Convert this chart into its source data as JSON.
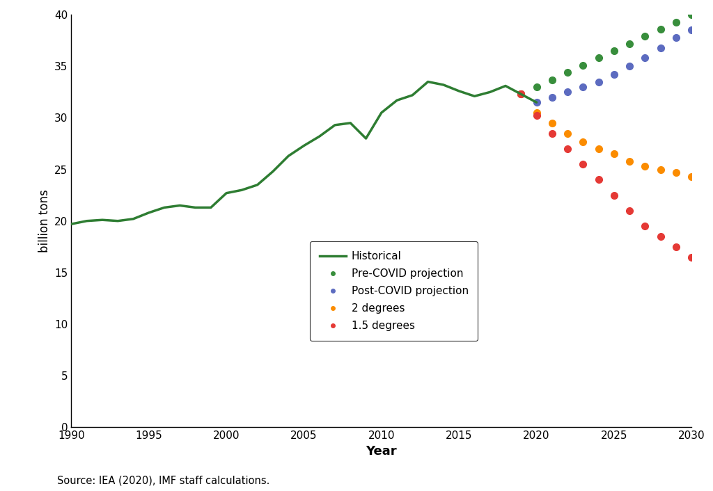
{
  "historical_years": [
    1990,
    1991,
    1992,
    1993,
    1994,
    1995,
    1996,
    1997,
    1998,
    1999,
    2000,
    2001,
    2002,
    2003,
    2004,
    2005,
    2006,
    2007,
    2008,
    2009,
    2010,
    2011,
    2012,
    2013,
    2014,
    2015,
    2016,
    2017,
    2018,
    2019,
    2020
  ],
  "historical_values": [
    19.7,
    20.0,
    20.1,
    20.0,
    20.2,
    20.8,
    21.3,
    21.5,
    21.3,
    21.3,
    22.7,
    23.0,
    23.5,
    24.8,
    26.3,
    27.3,
    28.2,
    29.3,
    29.5,
    28.0,
    30.5,
    31.7,
    32.2,
    33.5,
    33.2,
    32.6,
    32.1,
    32.5,
    33.1,
    32.3,
    31.5
  ],
  "projection_years": [
    2019,
    2020,
    2021,
    2022,
    2023,
    2024,
    2025,
    2026,
    2027,
    2028,
    2029,
    2030
  ],
  "pre_covid_values": [
    32.3,
    33.0,
    33.7,
    34.4,
    35.1,
    35.8,
    36.5,
    37.2,
    37.9,
    38.6,
    39.3,
    40.0
  ],
  "post_covid_values": [
    32.3,
    31.5,
    32.0,
    32.5,
    33.0,
    33.5,
    34.2,
    35.0,
    35.8,
    36.8,
    37.8,
    38.5
  ],
  "two_degrees_values": [
    32.3,
    30.5,
    29.5,
    28.5,
    27.7,
    27.0,
    26.5,
    25.8,
    25.3,
    25.0,
    24.7,
    24.3
  ],
  "one5_degrees_values": [
    32.3,
    30.2,
    28.5,
    27.0,
    25.5,
    24.0,
    22.5,
    21.0,
    19.5,
    18.5,
    17.5,
    16.5
  ],
  "historical_color": "#2e7d32",
  "pre_covid_color": "#388e3c",
  "post_covid_color": "#5c6bc0",
  "two_degrees_color": "#fb8c00",
  "one5_degrees_color": "#e53935",
  "xlim": [
    1990,
    2030
  ],
  "ylim": [
    0,
    40
  ],
  "xticks": [
    1990,
    1995,
    2000,
    2005,
    2010,
    2015,
    2020,
    2025,
    2030
  ],
  "yticks": [
    0,
    5,
    10,
    15,
    20,
    25,
    30,
    35,
    40
  ],
  "xlabel": "Year",
  "ylabel": "billion tons",
  "source_text": "Source: IEA (2020), IMF staff calculations.",
  "legend_labels": [
    "Historical",
    "Pre-COVID projection",
    "Post-COVID projection",
    "2 degrees",
    "1.5 degrees"
  ],
  "dotsize": 7,
  "linewidth": 2.5
}
